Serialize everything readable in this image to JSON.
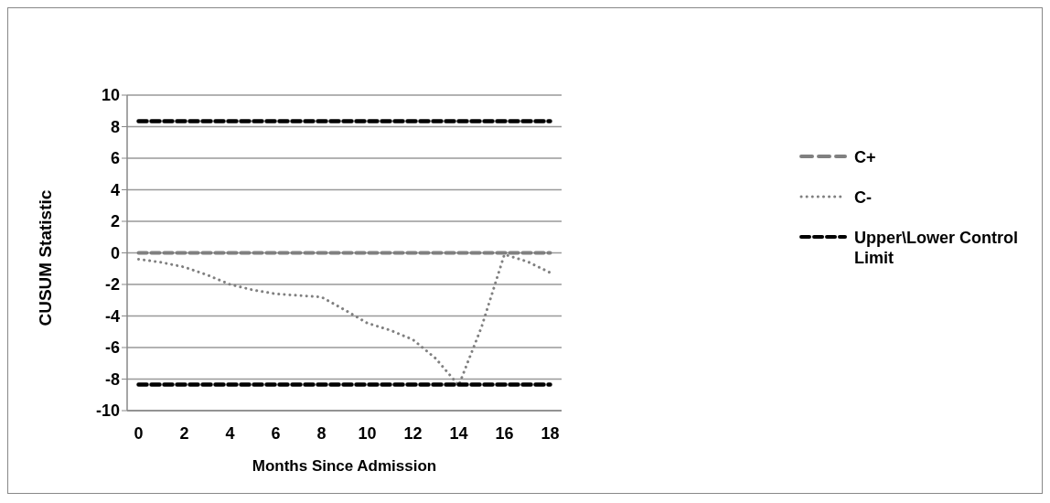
{
  "chart_data": {
    "type": "line",
    "xlabel": "Months Since Admission",
    "ylabel": "CUSUM Statistic",
    "x": [
      0,
      1,
      2,
      3,
      4,
      5,
      6,
      7,
      8,
      9,
      10,
      11,
      12,
      13,
      14,
      15,
      16,
      17,
      18
    ],
    "xlim": [
      -0.5,
      18.5
    ],
    "xticks": [
      0,
      2,
      4,
      6,
      8,
      10,
      12,
      14,
      16,
      18
    ],
    "ylim": [
      -10,
      10
    ],
    "yticks": [
      -10,
      -8,
      -6,
      -4,
      -2,
      0,
      2,
      4,
      6,
      8,
      10
    ],
    "grid": "y",
    "legend": "right",
    "marker": "none",
    "series": [
      {
        "name": "C+",
        "color": "#808080",
        "line_style": "dashed",
        "values": [
          0,
          0,
          0,
          0,
          0,
          0,
          0,
          0,
          0,
          0,
          0,
          0,
          0,
          0,
          0,
          0,
          0,
          0,
          0
        ]
      },
      {
        "name": "C-",
        "color": "#808080",
        "line_style": "dotted",
        "values": [
          -0.4,
          -0.6,
          -0.9,
          -1.4,
          -2.0,
          -2.35,
          -2.6,
          -2.7,
          -2.8,
          -3.6,
          -4.45,
          -4.9,
          -5.5,
          -6.7,
          -8.4,
          -4.7,
          -0.1,
          -0.55,
          -1.25
        ]
      },
      {
        "name": "Upper\\Lower Control Limit",
        "color": "#000000",
        "line_style": "dashed",
        "values": [
          8.35,
          8.35,
          8.35,
          8.35,
          8.35,
          8.35,
          8.35,
          8.35,
          8.35,
          8.35,
          8.35,
          8.35,
          8.35,
          8.35,
          8.35,
          8.35,
          8.35,
          8.35,
          8.35
        ]
      },
      {
        "color": "#000000",
        "line_style": "dashed",
        "values": [
          -8.35,
          -8.35,
          -8.35,
          -8.35,
          -8.35,
          -8.35,
          -8.35,
          -8.35,
          -8.35,
          -8.35,
          -8.35,
          -8.35,
          -8.35,
          -8.35,
          -8.35,
          -8.35,
          -8.35,
          -8.35,
          -8.35
        ]
      }
    ]
  }
}
